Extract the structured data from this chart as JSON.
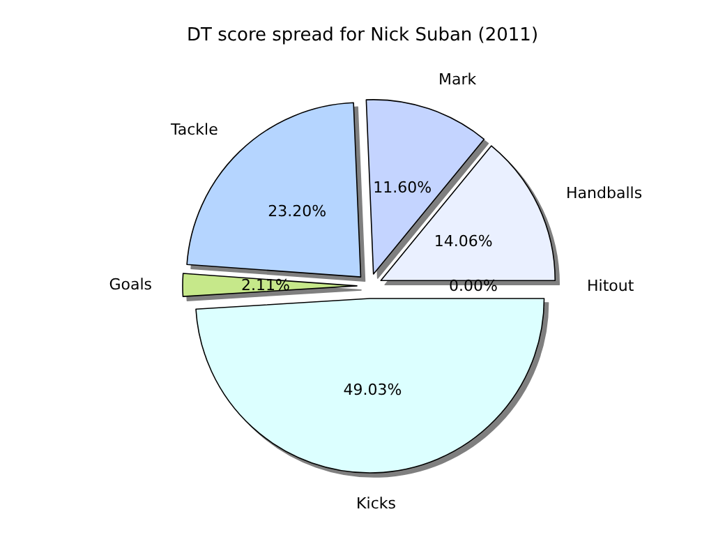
{
  "chart_data": {
    "type": "pie",
    "title": "DT score spread for Nick Suban (2011)",
    "categories": [
      "Hitout",
      "Handballs",
      "Mark",
      "Tackle",
      "Goals",
      "Kicks"
    ],
    "values": [
      0,
      14.06,
      11.6,
      23.2,
      2.11,
      49.03
    ],
    "value_labels": [
      "0.00%",
      "14.06%",
      "11.60%",
      "23.20%",
      "2.11%",
      "49.03%"
    ],
    "colors": [
      "#ffffff",
      "#eaf0ff",
      "#c4d4ff",
      "#b5d5ff",
      "#c6e88a",
      "#dcffff"
    ],
    "legend": false
  }
}
